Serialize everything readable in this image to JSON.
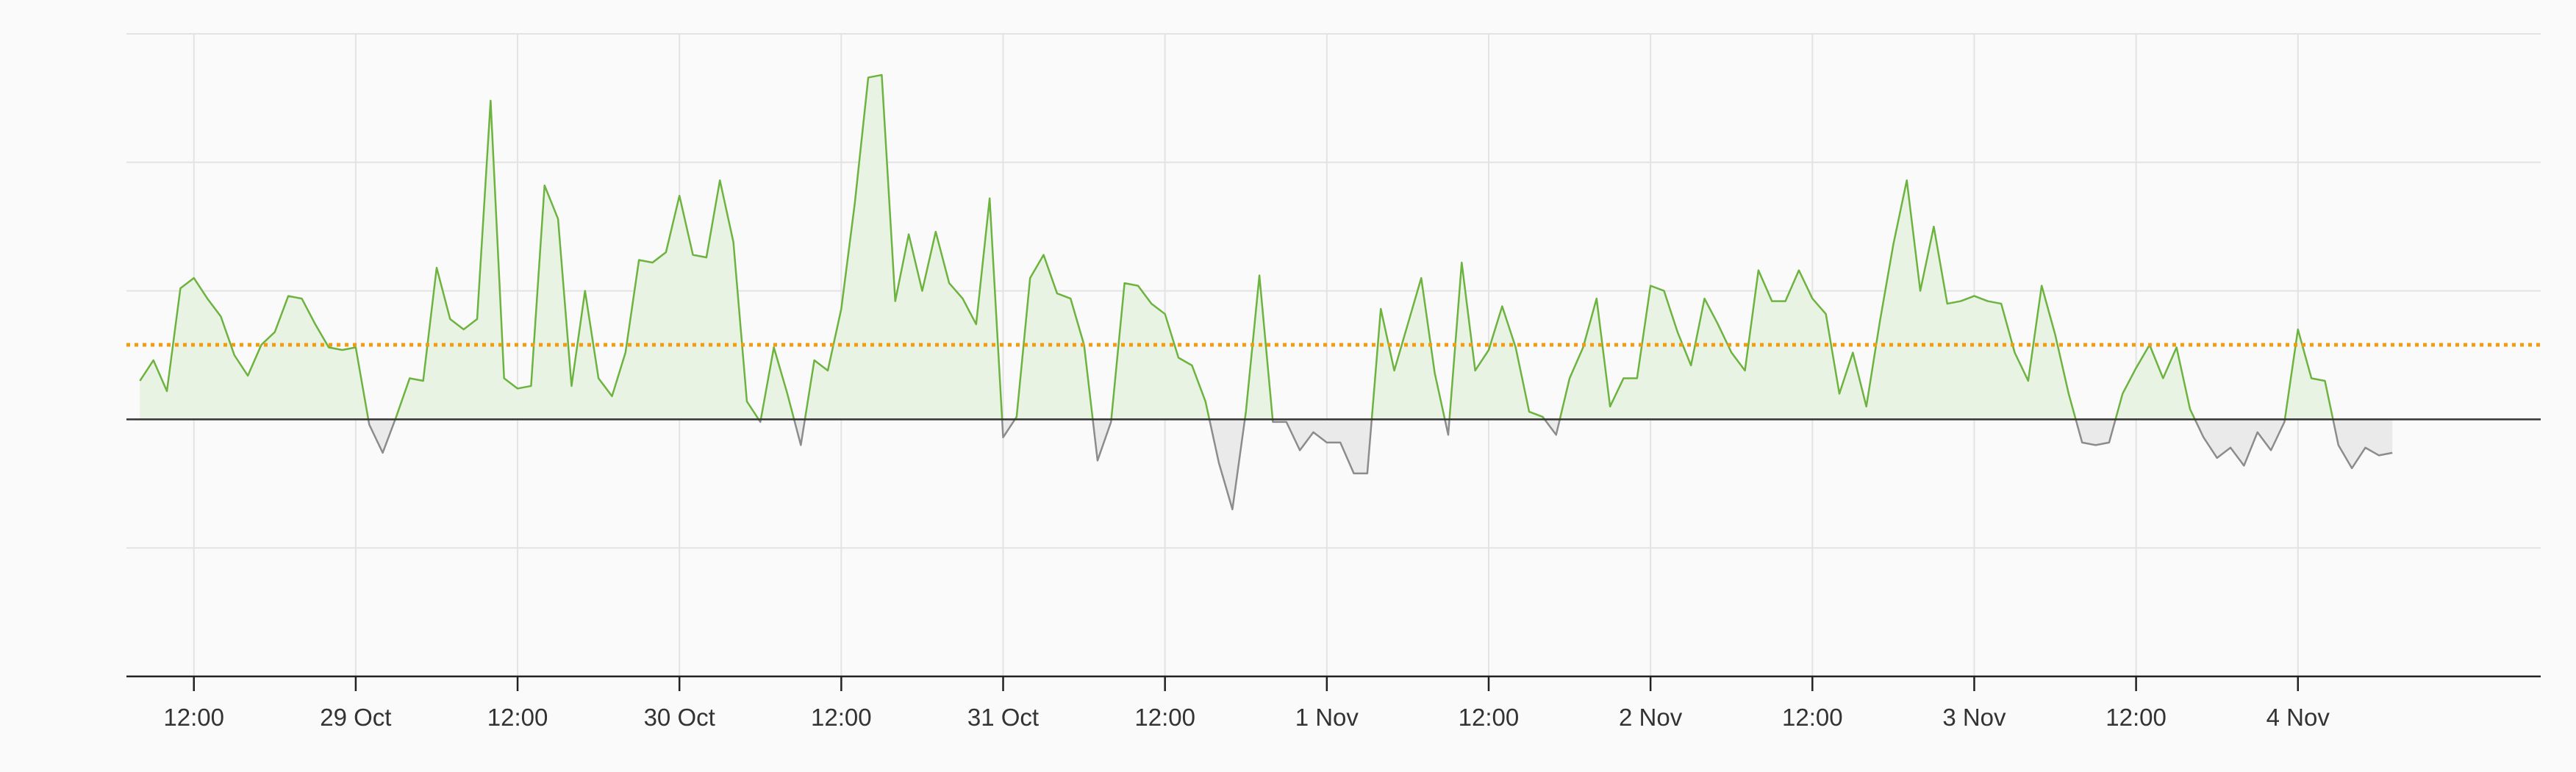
{
  "chart_data": {
    "type": "area",
    "title": "",
    "xlabel": "",
    "ylabel": "",
    "x_axis": {
      "type": "datetime",
      "start": "2024-10-28T07:00",
      "end": "2024-11-04T18:00",
      "tick_labels": [
        "12:00",
        "29 Oct",
        "12:00",
        "30 Oct",
        "12:00",
        "31 Oct",
        "12:00",
        "1 Nov",
        "12:00",
        "2 Nov",
        "12:00",
        "3 Nov",
        "12:00",
        "4 Nov"
      ],
      "tick_times": [
        "2024-10-28T12:00",
        "2024-10-29T00:00",
        "2024-10-29T12:00",
        "2024-10-30T00:00",
        "2024-10-30T12:00",
        "2024-10-31T00:00",
        "2024-10-31T12:00",
        "2024-11-01T00:00",
        "2024-11-01T12:00",
        "2024-11-02T00:00",
        "2024-11-02T12:00",
        "2024-11-03T00:00",
        "2024-11-03T12:00",
        "2024-11-04T00:00"
      ]
    },
    "y_axis": {
      "range": [
        -10,
        15
      ],
      "gridlines": [
        -10,
        -5,
        0,
        5,
        10,
        15
      ],
      "tick_labels_shown": false
    },
    "grid": true,
    "reference_line": {
      "value": 2.9,
      "style": "dotted",
      "color": "#f39c12"
    },
    "colors": {
      "positive": "#6db33f",
      "positive_fill": "#e9f3e3",
      "negative": "#8c8c8c",
      "negative_fill": "#eaeaea",
      "zero_line": "#333333",
      "grid": "#e3e3e3"
    },
    "series": [
      {
        "points": [
          [
            "2024-10-28T08:00",
            1.5
          ],
          [
            "2024-10-28T09:00",
            2.3
          ],
          [
            "2024-10-28T10:00",
            1.1
          ],
          [
            "2024-10-28T11:00",
            5.1
          ],
          [
            "2024-10-28T12:00",
            5.5
          ],
          [
            "2024-10-28T13:00",
            4.7
          ],
          [
            "2024-10-28T14:00",
            4.0
          ],
          [
            "2024-10-28T15:00",
            2.5
          ],
          [
            "2024-10-28T16:00",
            1.7
          ],
          [
            "2024-10-28T17:00",
            2.9
          ],
          [
            "2024-10-28T18:00",
            3.4
          ],
          [
            "2024-10-28T19:00",
            4.8
          ],
          [
            "2024-10-28T20:00",
            4.7
          ],
          [
            "2024-10-28T21:00",
            3.7
          ],
          [
            "2024-10-28T22:00",
            2.8
          ],
          [
            "2024-10-28T23:00",
            2.7
          ],
          [
            "2024-10-29T00:00",
            2.8
          ],
          [
            "2024-10-29T01:00",
            -0.2
          ],
          [
            "2024-10-29T02:00",
            -1.3
          ],
          [
            "2024-10-29T03:00",
            0.1
          ],
          [
            "2024-10-29T04:00",
            1.6
          ],
          [
            "2024-10-29T05:00",
            1.5
          ],
          [
            "2024-10-29T06:00",
            5.9
          ],
          [
            "2024-10-29T07:00",
            3.9
          ],
          [
            "2024-10-29T08:00",
            3.5
          ],
          [
            "2024-10-29T09:00",
            3.9
          ],
          [
            "2024-10-29T10:00",
            12.4
          ],
          [
            "2024-10-29T11:00",
            1.6
          ],
          [
            "2024-10-29T12:00",
            1.2
          ],
          [
            "2024-10-29T13:00",
            1.3
          ],
          [
            "2024-10-29T14:00",
            9.1
          ],
          [
            "2024-10-29T15:00",
            7.8
          ],
          [
            "2024-10-29T16:00",
            1.3
          ],
          [
            "2024-10-29T17:00",
            5.0
          ],
          [
            "2024-10-29T18:00",
            1.6
          ],
          [
            "2024-10-29T19:00",
            0.9
          ],
          [
            "2024-10-29T20:00",
            2.6
          ],
          [
            "2024-10-29T21:00",
            6.2
          ],
          [
            "2024-10-29T22:00",
            6.1
          ],
          [
            "2024-10-29T23:00",
            6.5
          ],
          [
            "2024-10-30T00:00",
            8.7
          ],
          [
            "2024-10-30T01:00",
            6.4
          ],
          [
            "2024-10-30T02:00",
            6.3
          ],
          [
            "2024-10-30T03:00",
            9.3
          ],
          [
            "2024-10-30T04:00",
            6.9
          ],
          [
            "2024-10-30T05:00",
            0.7
          ],
          [
            "2024-10-30T06:00",
            -0.1
          ],
          [
            "2024-10-30T07:00",
            2.8
          ],
          [
            "2024-10-30T08:00",
            1.0
          ],
          [
            "2024-10-30T09:00",
            -1.0
          ],
          [
            "2024-10-30T10:00",
            2.3
          ],
          [
            "2024-10-30T11:00",
            1.9
          ],
          [
            "2024-10-30T12:00",
            4.3
          ],
          [
            "2024-10-30T13:00",
            8.4
          ],
          [
            "2024-10-30T14:00",
            13.3
          ],
          [
            "2024-10-30T15:00",
            13.4
          ],
          [
            "2024-10-30T16:00",
            4.6
          ],
          [
            "2024-10-30T17:00",
            7.2
          ],
          [
            "2024-10-30T18:00",
            5.0
          ],
          [
            "2024-10-30T19:00",
            7.3
          ],
          [
            "2024-10-30T20:00",
            5.3
          ],
          [
            "2024-10-30T21:00",
            4.7
          ],
          [
            "2024-10-30T22:00",
            3.7
          ],
          [
            "2024-10-30T23:00",
            8.6
          ],
          [
            "2024-10-31T00:00",
            -0.7
          ],
          [
            "2024-10-31T01:00",
            0.1
          ],
          [
            "2024-10-31T02:00",
            5.5
          ],
          [
            "2024-10-31T03:00",
            6.4
          ],
          [
            "2024-10-31T04:00",
            4.9
          ],
          [
            "2024-10-31T05:00",
            4.7
          ],
          [
            "2024-10-31T06:00",
            2.9
          ],
          [
            "2024-10-31T07:00",
            -1.6
          ],
          [
            "2024-10-31T08:00",
            -0.1
          ],
          [
            "2024-10-31T09:00",
            5.3
          ],
          [
            "2024-10-31T10:00",
            5.2
          ],
          [
            "2024-10-31T11:00",
            4.5
          ],
          [
            "2024-10-31T12:00",
            4.1
          ],
          [
            "2024-10-31T13:00",
            2.4
          ],
          [
            "2024-10-31T14:00",
            2.1
          ],
          [
            "2024-10-31T15:00",
            0.7
          ],
          [
            "2024-10-31T16:00",
            -1.7
          ],
          [
            "2024-10-31T17:00",
            -3.5
          ],
          [
            "2024-10-31T18:00",
            0.3
          ],
          [
            "2024-10-31T19:00",
            5.6
          ],
          [
            "2024-10-31T20:00",
            -0.1
          ],
          [
            "2024-10-31T21:00",
            -0.1
          ],
          [
            "2024-10-31T22:00",
            -1.2
          ],
          [
            "2024-10-31T23:00",
            -0.5
          ],
          [
            "2024-11-01T00:00",
            -0.9
          ],
          [
            "2024-11-01T01:00",
            -0.9
          ],
          [
            "2024-11-01T02:00",
            -2.1
          ],
          [
            "2024-11-01T03:00",
            -2.1
          ],
          [
            "2024-11-01T04:00",
            4.3
          ],
          [
            "2024-11-01T05:00",
            1.9
          ],
          [
            "2024-11-01T06:00",
            3.7
          ],
          [
            "2024-11-01T07:00",
            5.5
          ],
          [
            "2024-11-01T08:00",
            1.8
          ],
          [
            "2024-11-01T09:00",
            -0.6
          ],
          [
            "2024-11-01T10:00",
            6.1
          ],
          [
            "2024-11-01T11:00",
            1.9
          ],
          [
            "2024-11-01T12:00",
            2.7
          ],
          [
            "2024-11-01T13:00",
            4.4
          ],
          [
            "2024-11-01T14:00",
            2.8
          ],
          [
            "2024-11-01T15:00",
            0.3
          ],
          [
            "2024-11-01T16:00",
            0.1
          ],
          [
            "2024-11-01T17:00",
            -0.6
          ],
          [
            "2024-11-01T18:00",
            1.6
          ],
          [
            "2024-11-01T19:00",
            2.8
          ],
          [
            "2024-11-01T20:00",
            4.7
          ],
          [
            "2024-11-01T21:00",
            0.5
          ],
          [
            "2024-11-01T22:00",
            1.6
          ],
          [
            "2024-11-01T23:00",
            1.6
          ],
          [
            "2024-11-02T00:00",
            5.2
          ],
          [
            "2024-11-02T01:00",
            5.0
          ],
          [
            "2024-11-02T02:00",
            3.4
          ],
          [
            "2024-11-02T03:00",
            2.1
          ],
          [
            "2024-11-02T04:00",
            4.7
          ],
          [
            "2024-11-02T05:00",
            3.7
          ],
          [
            "2024-11-02T06:00",
            2.6
          ],
          [
            "2024-11-02T07:00",
            1.9
          ],
          [
            "2024-11-02T08:00",
            5.8
          ],
          [
            "2024-11-02T09:00",
            4.6
          ],
          [
            "2024-11-02T10:00",
            4.6
          ],
          [
            "2024-11-02T11:00",
            5.8
          ],
          [
            "2024-11-02T12:00",
            4.7
          ],
          [
            "2024-11-02T13:00",
            4.1
          ],
          [
            "2024-11-02T14:00",
            1.0
          ],
          [
            "2024-11-02T15:00",
            2.6
          ],
          [
            "2024-11-02T16:00",
            0.5
          ],
          [
            "2024-11-02T17:00",
            3.8
          ],
          [
            "2024-11-02T18:00",
            6.8
          ],
          [
            "2024-11-02T19:00",
            9.3
          ],
          [
            "2024-11-02T20:00",
            5.0
          ],
          [
            "2024-11-02T21:00",
            7.5
          ],
          [
            "2024-11-02T22:00",
            4.5
          ],
          [
            "2024-11-02T23:00",
            4.6
          ],
          [
            "2024-11-03T00:00",
            4.8
          ],
          [
            "2024-11-03T01:00",
            4.6
          ],
          [
            "2024-11-03T02:00",
            4.5
          ],
          [
            "2024-11-03T03:00",
            2.6
          ],
          [
            "2024-11-03T04:00",
            1.5
          ],
          [
            "2024-11-03T05:00",
            5.2
          ],
          [
            "2024-11-03T06:00",
            3.3
          ],
          [
            "2024-11-03T07:00",
            1.0
          ],
          [
            "2024-11-03T08:00",
            -0.9
          ],
          [
            "2024-11-03T09:00",
            -1.0
          ],
          [
            "2024-11-03T10:00",
            -0.9
          ],
          [
            "2024-11-03T11:00",
            1.0
          ],
          [
            "2024-11-03T12:00",
            2.0
          ],
          [
            "2024-11-03T13:00",
            2.9
          ],
          [
            "2024-11-03T14:00",
            1.6
          ],
          [
            "2024-11-03T15:00",
            2.8
          ],
          [
            "2024-11-03T16:00",
            0.4
          ],
          [
            "2024-11-03T17:00",
            -0.7
          ],
          [
            "2024-11-03T18:00",
            -1.5
          ],
          [
            "2024-11-03T19:00",
            -1.1
          ],
          [
            "2024-11-03T20:00",
            -1.8
          ],
          [
            "2024-11-03T21:00",
            -0.5
          ],
          [
            "2024-11-03T22:00",
            -1.2
          ],
          [
            "2024-11-03T23:00",
            -0.1
          ],
          [
            "2024-11-04T00:00",
            3.5
          ],
          [
            "2024-11-04T01:00",
            1.6
          ],
          [
            "2024-11-04T02:00",
            1.5
          ],
          [
            "2024-11-04T03:00",
            -1.0
          ],
          [
            "2024-11-04T04:00",
            -1.9
          ],
          [
            "2024-11-04T05:00",
            -1.1
          ],
          [
            "2024-11-04T06:00",
            -1.4
          ],
          [
            "2024-11-04T07:00",
            -1.3
          ]
        ]
      }
    ]
  }
}
